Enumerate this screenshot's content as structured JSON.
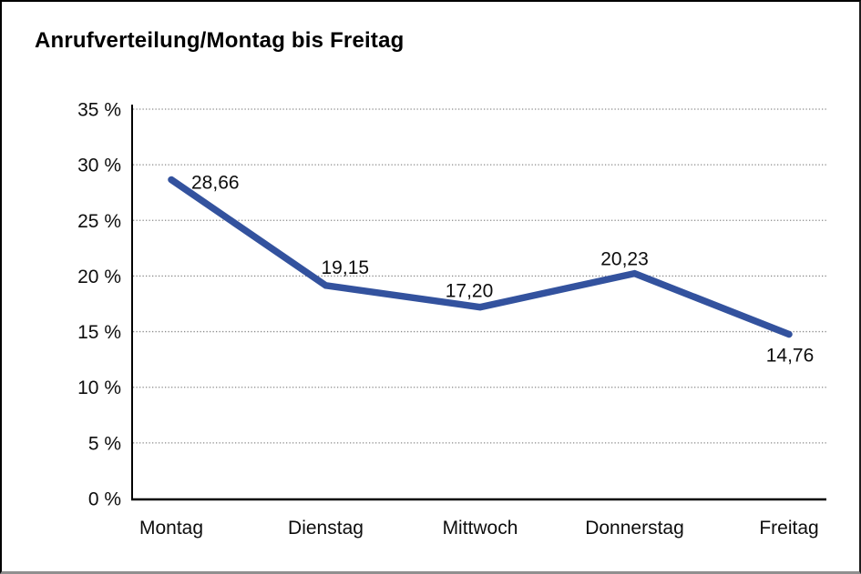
{
  "chart_data": {
    "type": "line",
    "title": "Anrufverteilung/Montag bis Freitag",
    "categories": [
      "Montag",
      "Dienstag",
      "Mittwoch",
      "Donnerstag",
      "Freitag"
    ],
    "values": [
      28.66,
      19.15,
      17.2,
      20.23,
      14.76
    ],
    "value_labels": [
      "28,66",
      "19,15",
      "17,20",
      "20,23",
      "14,76"
    ],
    "ytick_values": [
      0,
      5,
      10,
      15,
      20,
      25,
      30,
      35
    ],
    "ytick_labels": [
      "0 %",
      "5 %",
      "10 %",
      "15 %",
      "20 %",
      "25 %",
      "30 %",
      "35 %"
    ],
    "ylim": [
      0,
      35
    ],
    "xlabel": "",
    "ylabel": "",
    "grid": "horizontal-dotted",
    "legend": "none",
    "colors": {
      "line": "#33529E",
      "axis": "#000000",
      "gridline": "#8a8a8a",
      "text": "#0d0d0d",
      "background": "#ffffff"
    }
  }
}
